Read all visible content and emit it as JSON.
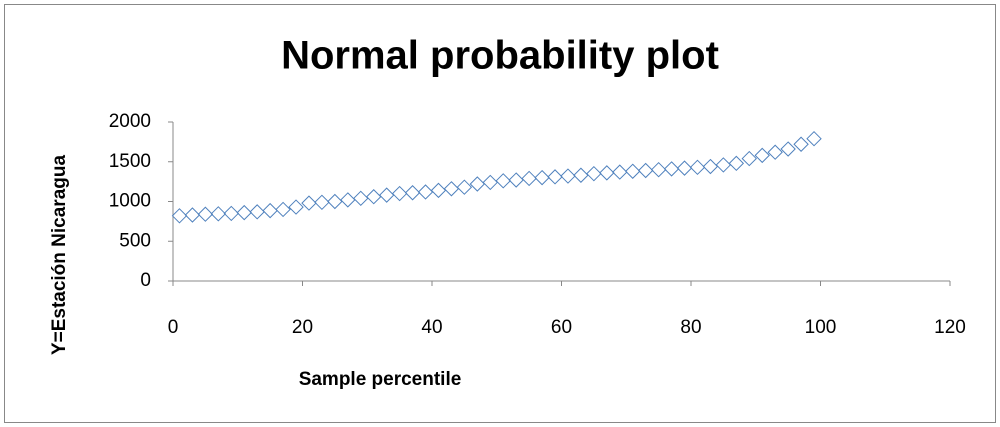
{
  "chart_data": {
    "type": "scatter",
    "title": "Normal probability plot",
    "x_label": "Sample percentile",
    "y_label": "Y=Estación Nicaragua",
    "x": [
      1,
      3,
      5,
      7,
      9,
      11,
      13,
      15,
      17,
      19,
      21,
      23,
      25,
      27,
      29,
      31,
      33,
      35,
      37,
      39,
      41,
      43,
      45,
      47,
      49,
      51,
      53,
      55,
      57,
      59,
      61,
      63,
      65,
      67,
      69,
      71,
      73,
      75,
      77,
      79,
      81,
      83,
      85,
      87,
      89,
      91,
      93,
      95,
      97,
      99
    ],
    "values": [
      820,
      830,
      840,
      845,
      850,
      860,
      870,
      885,
      900,
      930,
      980,
      990,
      1000,
      1020,
      1040,
      1060,
      1080,
      1100,
      1110,
      1120,
      1140,
      1160,
      1180,
      1220,
      1240,
      1260,
      1270,
      1290,
      1300,
      1310,
      1320,
      1330,
      1350,
      1360,
      1370,
      1380,
      1390,
      1400,
      1410,
      1420,
      1430,
      1440,
      1460,
      1480,
      1540,
      1580,
      1620,
      1660,
      1720,
      1790
    ],
    "color": "#4f81bd",
    "marker": "diamond",
    "xlim": [
      0,
      120
    ],
    "xticks": [
      0,
      20,
      40,
      60,
      80,
      100,
      120
    ],
    "ylim": [
      0,
      2000
    ],
    "yticks": [
      0,
      500,
      1000,
      1500,
      2000
    ]
  }
}
